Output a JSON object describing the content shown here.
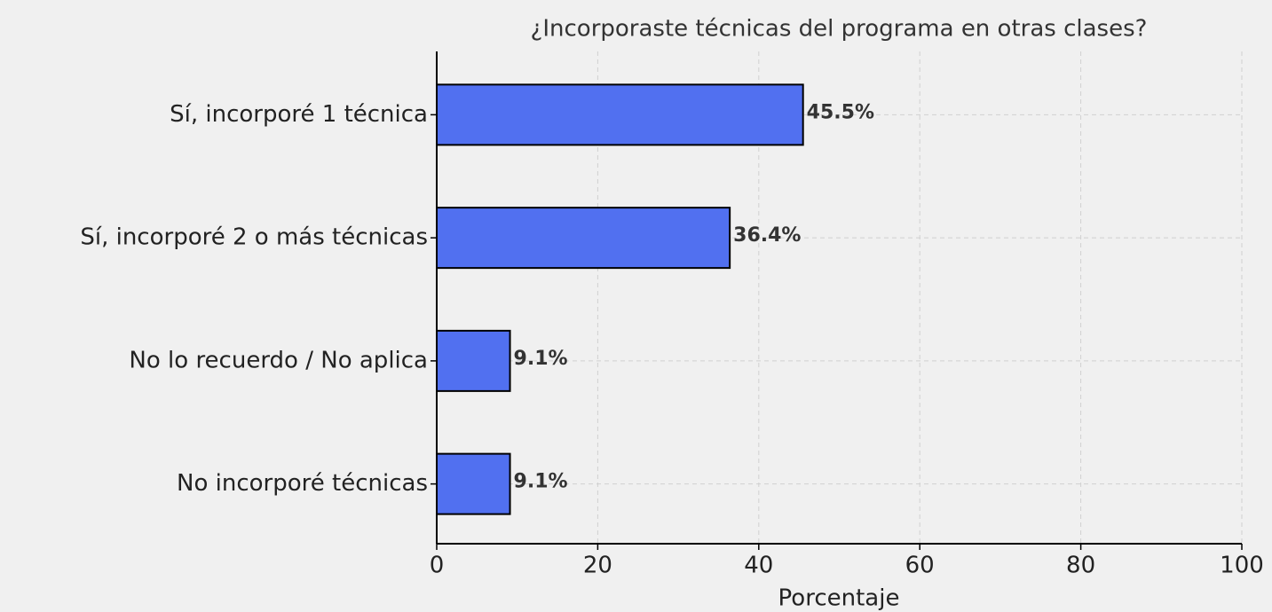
{
  "chart_data": {
    "type": "barh",
    "title": "¿Incorporaste técnicas del programa en otras clases?",
    "categories": [
      "Sí, incorporé 1 técnica",
      "Sí, incorporé 2 o más técnicas",
      "No lo recuerdo / No aplica",
      "No incorporé técnicas"
    ],
    "values": [
      45.5,
      36.4,
      9.1,
      9.1
    ],
    "value_labels": [
      "45.5%",
      "36.4%",
      "9.1%",
      "9.1%"
    ],
    "color": "#5170f0",
    "xlabel": "Porcentaje",
    "xlim": [
      0,
      100
    ],
    "xticks": [
      0,
      20,
      40,
      60,
      80,
      100
    ],
    "grid": true
  }
}
